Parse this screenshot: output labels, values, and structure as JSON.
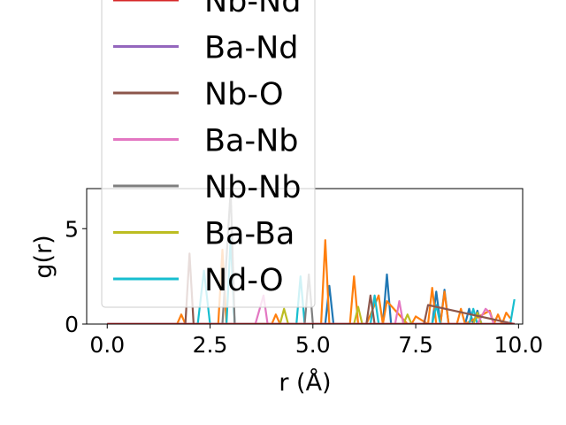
{
  "chart_data": {
    "type": "line",
    "xlabel": "r (Å)",
    "ylabel": "g(r)",
    "xlim": [
      -0.5,
      10.1
    ],
    "ylim": [
      0,
      7.1
    ],
    "xticks": [
      0.0,
      2.5,
      5.0,
      7.5,
      10.0
    ],
    "xtick_labels": [
      "0.0",
      "2.5",
      "5.0",
      "7.5",
      "10.0"
    ],
    "yticks": [
      0,
      5
    ],
    "ytick_labels": [
      "0",
      "5"
    ],
    "legend_position": "upper-left, clipped above axes",
    "series": [
      {
        "name": "Nb-Nd",
        "color": "#d62728",
        "x": [
          0,
          1.5,
          3.0,
          4.5,
          6.0,
          7.5,
          9.9
        ],
        "y": [
          0,
          0,
          0,
          0,
          0,
          0,
          0
        ]
      },
      {
        "name": "Ba-Nd",
        "color": "#9467bd",
        "x": [
          0,
          1.5,
          3.0,
          4.5,
          6.0,
          7.5,
          9.9
        ],
        "y": [
          0,
          0,
          0,
          0,
          0,
          0,
          0
        ]
      },
      {
        "name": "Nb-O",
        "color": "#8c564b",
        "x": [
          0,
          1.9,
          2.0,
          2.1,
          5.8,
          6.3,
          6.4,
          6.5,
          7.6,
          7.7,
          7.8,
          9.9
        ],
        "y": [
          0,
          0,
          3.7,
          0,
          0,
          0,
          1.5,
          0,
          0,
          0,
          1.0,
          0
        ]
      },
      {
        "name": "Ba-Nb",
        "color": "#e377c2",
        "x": [
          0,
          3.6,
          3.8,
          3.9,
          6.9,
          7.0,
          7.1,
          7.2,
          9.0,
          9.2,
          9.3,
          9.4,
          9.9
        ],
        "y": [
          0,
          0,
          1.5,
          0,
          0,
          0,
          1.2,
          0,
          0,
          0.8,
          0.6,
          0,
          0
        ]
      },
      {
        "name": "Nb-Nb",
        "color": "#7f7f7f",
        "x": [
          0,
          2.8,
          3.0,
          3.1,
          4.4,
          4.8,
          4.9,
          5.0,
          9.9
        ],
        "y": [
          0,
          0,
          7.0,
          0,
          0,
          0,
          2.6,
          0,
          0
        ]
      },
      {
        "name": "Ba-Ba",
        "color": "#bcbd22",
        "x": [
          0,
          4.2,
          4.3,
          4.4,
          6.0,
          6.1,
          6.2,
          7.2,
          7.3,
          7.4,
          8.9,
          9.0,
          9.1,
          9.9
        ],
        "y": [
          0,
          0,
          0.8,
          0,
          0,
          0.9,
          0,
          0,
          0.5,
          0,
          0,
          0.6,
          0,
          0
        ]
      },
      {
        "name": "Nd-O",
        "color": "#17becf",
        "x": [
          0,
          2.2,
          2.35,
          2.5,
          2.9,
          3.0,
          3.1,
          4.6,
          4.7,
          4.8,
          6.4,
          6.5,
          6.6,
          7.9,
          8.0,
          8.1,
          8.8,
          8.9,
          9.0,
          9.7,
          9.8,
          9.9
        ],
        "y": [
          0,
          0,
          2.8,
          0,
          0,
          4.5,
          0,
          0,
          2.5,
          0,
          0,
          1.5,
          0,
          0,
          1.0,
          0,
          0,
          0.8,
          0,
          0,
          0,
          1.3
        ]
      },
      {
        "name": "",
        "color": "#ff7f0e",
        "x": [
          0,
          1.7,
          1.8,
          1.9,
          2.6,
          2.7,
          2.8,
          2.9,
          4.0,
          4.1,
          4.2,
          5.2,
          5.3,
          5.4,
          5.9,
          6.0,
          6.1,
          6.1,
          6.3,
          6.6,
          6.7,
          6.8,
          7.3,
          7.4,
          7.5,
          7.8,
          7.9,
          8.0,
          8.1,
          8.2,
          8.3,
          8.5,
          8.6,
          8.7,
          9.3,
          9.4,
          9.5,
          9.6,
          9.7,
          9.8
        ],
        "y": [
          0,
          0,
          0.5,
          0,
          0,
          0,
          3.9,
          0,
          0,
          0.5,
          0,
          0,
          4.4,
          0,
          0,
          2.5,
          0,
          0,
          0,
          1.5,
          0,
          1.2,
          0,
          0,
          0.4,
          0,
          1.9,
          0,
          0,
          1.7,
          0,
          0,
          0.8,
          0,
          0.7,
          0,
          0.5,
          0,
          0.6,
          0.3
        ]
      },
      {
        "name": "",
        "color": "#1f77b4",
        "x": [
          0,
          4.9,
          5.0,
          5.1,
          5.3,
          5.4,
          5.5,
          6.6,
          6.7,
          6.8,
          6.9,
          7.8,
          7.9,
          8.0,
          8.1,
          8.2,
          8.3,
          8.7,
          8.8,
          8.9,
          9.0,
          9.1,
          9.9
        ],
        "y": [
          0,
          0,
          0,
          0,
          0,
          2.0,
          0,
          0,
          0,
          2.6,
          0,
          0,
          0,
          1.7,
          0,
          1.8,
          0,
          0,
          0.8,
          0,
          0.7,
          0,
          0
        ]
      }
    ]
  }
}
